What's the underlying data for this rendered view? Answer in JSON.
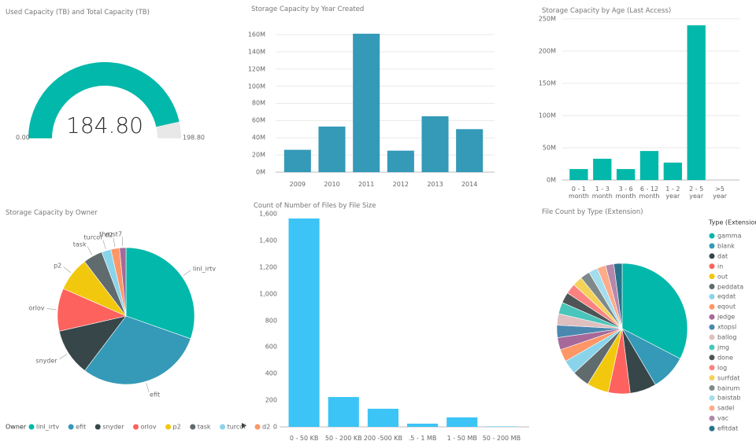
{
  "chart_data": [
    {
      "type": "gauge",
      "title": "Used Capacity (TB) and Total Capacity (TB)",
      "value": 184.8,
      "value_label": "184.80",
      "min": {
        "value": 0,
        "label": "0.00"
      },
      "max": {
        "value": 198.8,
        "label": "198.80"
      },
      "color": "#01b8aa",
      "track_color": "#e8e8e8"
    },
    {
      "type": "bar",
      "title": "Storage Capacity by Year Created",
      "categories": [
        "2009",
        "2010",
        "2011",
        "2012",
        "2013",
        "2014"
      ],
      "values": [
        26000000,
        53000000,
        161000000,
        25000000,
        65000000,
        50000000
      ],
      "color": "#3599b8",
      "ylim": [
        0,
        165000000
      ],
      "yticks": [
        {
          "value": 0,
          "label": "0M"
        },
        {
          "value": 20000000,
          "label": "20M"
        },
        {
          "value": 40000000,
          "label": "40M"
        },
        {
          "value": 60000000,
          "label": "60M"
        },
        {
          "value": 80000000,
          "label": "80M"
        },
        {
          "value": 100000000,
          "label": "100M"
        },
        {
          "value": 120000000,
          "label": "120M"
        },
        {
          "value": 140000000,
          "label": "140M"
        },
        {
          "value": 160000000,
          "label": "160M"
        }
      ],
      "grid": true
    },
    {
      "type": "bar",
      "title": "Storage Capacity by Age (Last Access)",
      "categories": [
        "0 - 1 month",
        "1 - 3 month",
        "3 - 6 month",
        "6 - 12 month",
        "1 - 2 year",
        "2 - 5 year",
        ">5 year"
      ],
      "values": [
        17000000,
        33000000,
        17000000,
        45000000,
        27000000,
        240000000,
        0
      ],
      "color": "#01b8aa",
      "ylim": [
        0,
        250000000
      ],
      "yticks": [
        {
          "value": 0,
          "label": "0M"
        },
        {
          "value": 50000000,
          "label": "50M"
        },
        {
          "value": 100000000,
          "label": "100M"
        },
        {
          "value": 150000000,
          "label": "150M"
        },
        {
          "value": 200000000,
          "label": "200M"
        },
        {
          "value": 250000000,
          "label": "250M"
        }
      ],
      "grid": true
    },
    {
      "type": "pie",
      "title": "Storage Capacity by Owner",
      "legend_title": "Owner",
      "series": [
        {
          "name": "linl_irtv",
          "color": "#01b8aa",
          "values": [
            30
          ]
        },
        {
          "name": "efit",
          "color": "#3599b8",
          "values": [
            29.5
          ]
        },
        {
          "name": "snyder",
          "color": "#374649",
          "values": [
            11
          ]
        },
        {
          "name": "orlov",
          "color": "#fd625e",
          "values": [
            10
          ]
        },
        {
          "name": "p2",
          "color": "#f2c80f",
          "values": [
            8
          ]
        },
        {
          "name": "task",
          "color": "#5f6b6d",
          "values": [
            4.5
          ]
        },
        {
          "name": "turcof",
          "color": "#8ad4eb",
          "values": [
            2.2
          ]
        },
        {
          "name": "d2",
          "color": "#fe9666",
          "values": [
            2
          ]
        },
        {
          "name": "thrust7",
          "color": "#a66999",
          "values": [
            1.5
          ]
        }
      ]
    },
    {
      "type": "bar",
      "title": "Count of Number of Files by File Size",
      "categories": [
        "0 - 50 KB",
        "50 - 200 KB",
        "200 -500 KB",
        ".5 - 1 MB",
        "1 - 50 MB",
        "50 - 200 MB"
      ],
      "values": [
        1565,
        224,
        136,
        24,
        71,
        3
      ],
      "color": "#3cc4f6",
      "ylim": [
        0,
        1600
      ],
      "yticks": [
        0,
        200,
        400,
        600,
        800,
        {
          "value": 1000,
          "label": "1,000"
        },
        {
          "value": 1200,
          "label": "1,200"
        },
        {
          "value": 1400,
          "label": "1,400"
        },
        {
          "value": 1600,
          "label": "1,600"
        }
      ],
      "grid": false
    },
    {
      "type": "pie",
      "title": "File Count by Type (Extension)",
      "legend_title": "Type (Extension)",
      "series": [
        {
          "name": "gamma",
          "color": "#01b8aa",
          "values": [
            32
          ]
        },
        {
          "name": "blank",
          "color": "#3599b8",
          "values": [
            8.7
          ]
        },
        {
          "name": "dat",
          "color": "#374649",
          "values": [
            6.4
          ]
        },
        {
          "name": "in",
          "color": "#fd625e",
          "values": [
            5.3
          ]
        },
        {
          "name": "out",
          "color": "#f2c80f",
          "values": [
            5.3
          ]
        },
        {
          "name": "peddata",
          "color": "#5f6b6d",
          "values": [
            4.2
          ]
        },
        {
          "name": "eqdat",
          "color": "#8ad4eb",
          "values": [
            3.5
          ]
        },
        {
          "name": "eqout",
          "color": "#fe9666",
          "values": [
            3
          ]
        },
        {
          "name": "jedge",
          "color": "#a66999",
          "values": [
            3
          ]
        },
        {
          "name": "xtopsl",
          "color": "#4a88b0",
          "values": [
            3
          ]
        },
        {
          "name": "ballog",
          "color": "#dfbfbf",
          "values": [
            2.8
          ]
        },
        {
          "name": "jmg",
          "color": "#4ac5bb",
          "values": [
            2.8
          ]
        },
        {
          "name": "done",
          "color": "#4f5556",
          "values": [
            2.6
          ]
        },
        {
          "name": "log",
          "color": "#fb8281",
          "values": [
            2.5
          ]
        },
        {
          "name": "surfdat",
          "color": "#f4d25a",
          "values": [
            2.4
          ]
        },
        {
          "name": "bairum",
          "color": "#7f898a",
          "values": [
            2.3
          ]
        },
        {
          "name": "baistab",
          "color": "#a4ddee",
          "values": [
            2.2
          ]
        },
        {
          "name": "sadel",
          "color": "#fdab89",
          "values": [
            2.1
          ]
        },
        {
          "name": "vac",
          "color": "#b687ac",
          "values": [
            2
          ]
        },
        {
          "name": "efitdat",
          "color": "#28738a",
          "values": [
            2
          ]
        }
      ]
    }
  ]
}
